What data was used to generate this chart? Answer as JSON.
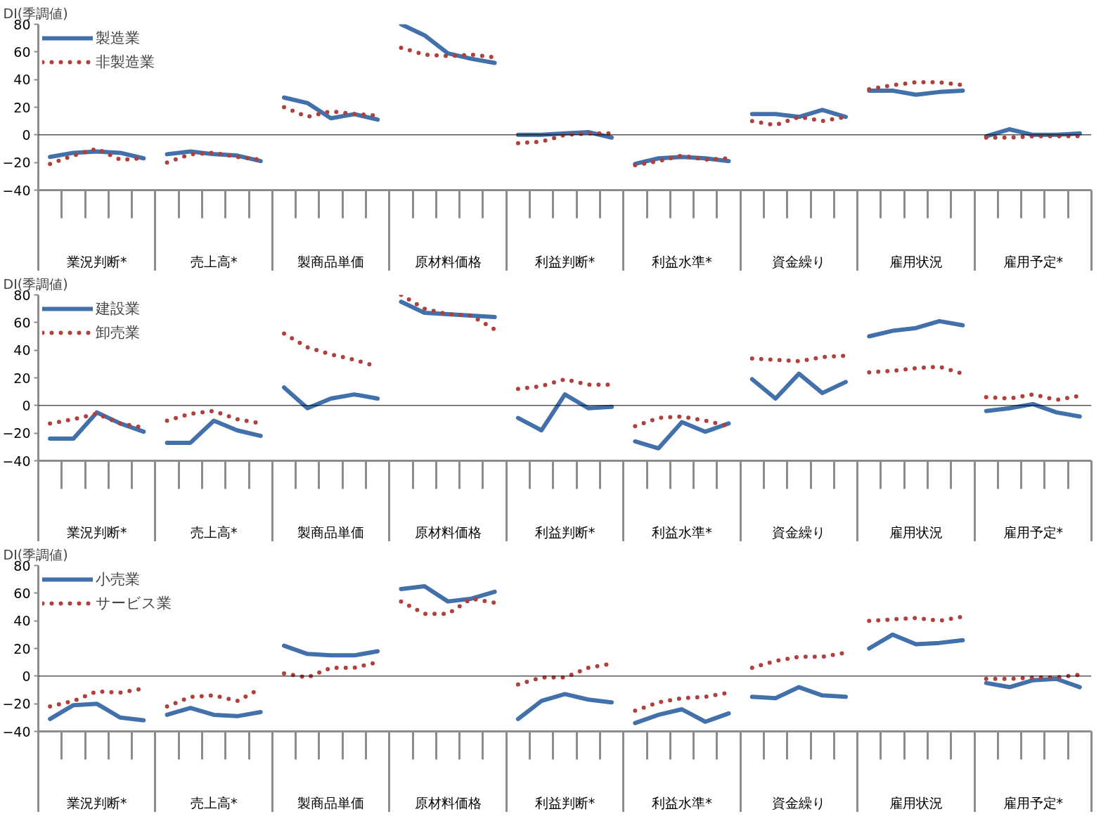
{
  "chart_data": [
    {
      "type": "line",
      "ylabel": "DI(季調値)",
      "categories": [
        null,
        null,
        "業況判断*",
        null,
        null,
        null,
        null,
        "売上高*",
        null,
        null,
        null,
        null,
        "製商品単価",
        null,
        null,
        null,
        null,
        "原材料価格",
        null,
        null,
        null,
        null,
        "利益判断*",
        null,
        null,
        null,
        null,
        "利益水準*",
        null,
        null,
        null,
        null,
        "資金繰り",
        null,
        null,
        null,
        null,
        "雇用状況",
        null,
        null,
        null,
        null,
        "雇用予定*",
        null,
        null
      ],
      "series": [
        {
          "name": "製造業",
          "color": "#4170aa",
          "line_style": "solid",
          "values": [
            -16,
            -13,
            -12,
            -13,
            -17,
            -14,
            -12,
            -14,
            -15,
            -19,
            27,
            23,
            12,
            15,
            11,
            80,
            72,
            59,
            55,
            52,
            0,
            0,
            1,
            2,
            -2,
            -21,
            -17,
            -16,
            -17,
            -19,
            15,
            15,
            13,
            18,
            13,
            32,
            32,
            29,
            31,
            32,
            -1,
            4,
            0,
            0,
            1
          ]
        },
        {
          "name": "非製造業",
          "color": "#b0403c",
          "line_style": "dotted",
          "values": [
            -21,
            -15,
            -10,
            -18,
            -17,
            -20,
            -14,
            -13,
            -16,
            -18,
            20,
            13,
            17,
            15,
            14,
            63,
            58,
            57,
            58,
            56,
            -6,
            -5,
            0,
            1,
            1,
            -22,
            -19,
            -15,
            -18,
            -17,
            10,
            7,
            13,
            10,
            13,
            33,
            36,
            38,
            38,
            36,
            -2,
            -2,
            -1,
            -1,
            -1
          ]
        }
      ],
      "ylim": [
        -40,
        80
      ],
      "yticks": [
        -40,
        -20,
        0,
        20,
        40,
        60,
        80
      ],
      "legend": "top left",
      "ref_lines": [
        {
          "axis": "y",
          "value": 0
        }
      ]
    },
    {
      "type": "line",
      "ylabel": "DI(季調値)",
      "categories": [
        null,
        null,
        "業況判断*",
        null,
        null,
        null,
        null,
        "売上高*",
        null,
        null,
        null,
        null,
        "製商品単価",
        null,
        null,
        null,
        null,
        "原材料価格",
        null,
        null,
        null,
        null,
        "利益判断*",
        null,
        null,
        null,
        null,
        "利益水準*",
        null,
        null,
        null,
        null,
        "資金繰り",
        null,
        null,
        null,
        null,
        "雇用状況",
        null,
        null,
        null,
        null,
        "雇用予定*",
        null,
        null
      ],
      "series": [
        {
          "name": "建設業",
          "color": "#4170aa",
          "line_style": "solid",
          "values": [
            -24,
            -24,
            -5,
            -13,
            -19,
            -27,
            -27,
            -11,
            -18,
            -22,
            13,
            -2,
            5,
            8,
            5,
            75,
            67,
            66,
            65,
            64,
            -9,
            -18,
            8,
            -2,
            -1,
            -26,
            -31,
            -12,
            -19,
            -13,
            19,
            5,
            23,
            9,
            17,
            50,
            54,
            56,
            61,
            58,
            -4,
            -2,
            1,
            -5,
            -8
          ]
        },
        {
          "name": "卸売業",
          "color": "#b0403c",
          "line_style": "dotted",
          "values": [
            -13,
            -10,
            -6,
            -13,
            -16,
            -11,
            -6,
            -4,
            -10,
            -13,
            52,
            42,
            37,
            33,
            28,
            80,
            70,
            66,
            65,
            55,
            12,
            14,
            19,
            15,
            15,
            -15,
            -9,
            -8,
            -11,
            -15,
            34,
            33,
            32,
            35,
            36,
            24,
            25,
            27,
            28,
            23,
            6,
            5,
            8,
            4,
            7
          ]
        }
      ],
      "ylim": [
        -40,
        80
      ],
      "yticks": [
        -40,
        -20,
        0,
        20,
        40,
        60,
        80
      ],
      "legend": "top left",
      "ref_lines": [
        {
          "axis": "y",
          "value": 0
        }
      ]
    },
    {
      "type": "line",
      "ylabel": "DI(季調値)",
      "categories": [
        null,
        null,
        "業況判断*",
        null,
        null,
        null,
        null,
        "売上高*",
        null,
        null,
        null,
        null,
        "製商品単価",
        null,
        null,
        null,
        null,
        "原材料価格",
        null,
        null,
        null,
        null,
        "利益判断*",
        null,
        null,
        null,
        null,
        "利益水準*",
        null,
        null,
        null,
        null,
        "資金繰り",
        null,
        null,
        null,
        null,
        "雇用状況",
        null,
        null,
        null,
        null,
        "雇用予定*",
        null,
        null
      ],
      "series": [
        {
          "name": "小売業",
          "color": "#4170aa",
          "line_style": "solid",
          "values": [
            -31,
            -21,
            -20,
            -30,
            -32,
            -28,
            -23,
            -28,
            -29,
            -26,
            22,
            16,
            15,
            15,
            18,
            63,
            65,
            54,
            56,
            61,
            -31,
            -18,
            -13,
            -17,
            -19,
            -34,
            -28,
            -24,
            -33,
            -27,
            -15,
            -16,
            -8,
            -14,
            -15,
            20,
            30,
            23,
            24,
            26,
            -5,
            -8,
            -3,
            -2,
            -8
          ]
        },
        {
          "name": "サービス業",
          "color": "#b0403c",
          "line_style": "dotted",
          "values": [
            -22,
            -18,
            -11,
            -12,
            -9,
            -22,
            -15,
            -14,
            -18,
            -9,
            2,
            -1,
            6,
            6,
            10,
            54,
            45,
            45,
            56,
            53,
            -6,
            -1,
            -1,
            6,
            9,
            -25,
            -19,
            -16,
            -15,
            -12,
            6,
            11,
            14,
            14,
            17,
            40,
            41,
            42,
            40,
            43,
            -2,
            -2,
            -1,
            -1,
            1
          ]
        }
      ],
      "ylim": [
        -40,
        80
      ],
      "yticks": [
        -40,
        -20,
        0,
        20,
        40,
        60,
        80
      ],
      "legend": "top left",
      "ref_lines": [
        {
          "axis": "y",
          "value": 0
        }
      ]
    }
  ]
}
